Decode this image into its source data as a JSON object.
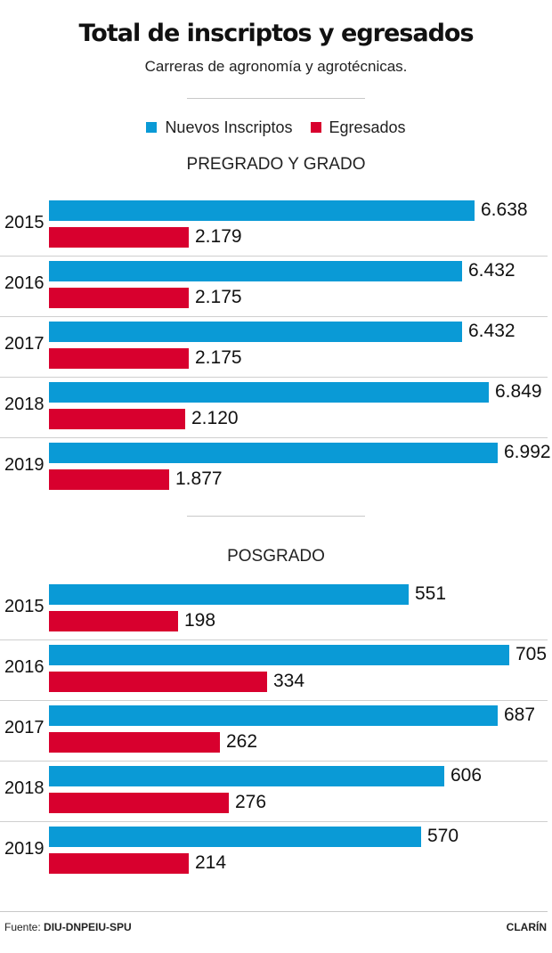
{
  "title": "Total de inscriptos y egresados",
  "subtitle": "Carreras de agronomía y agrotécnicas.",
  "legend": [
    {
      "label": "Nuevos Inscriptos",
      "color": "#0a9ad6"
    },
    {
      "label": "Egresados",
      "color": "#d8002e"
    }
  ],
  "chart_data": [
    {
      "type": "bar",
      "orientation": "horizontal",
      "title": "PREGRADO Y GRADO",
      "categories": [
        "2015",
        "2016",
        "2017",
        "2018",
        "2019"
      ],
      "series": [
        {
          "name": "Nuevos Inscriptos",
          "values": [
            6638,
            6432,
            6432,
            6849,
            6992
          ],
          "labels": [
            "6.638",
            "6.432",
            "6.432",
            "6.849",
            "6.992"
          ]
        },
        {
          "name": "Egresados",
          "values": [
            2179,
            2175,
            2175,
            2120,
            1877
          ],
          "labels": [
            "2.179",
            "2.175",
            "2.175",
            "2.120",
            "1.877"
          ]
        }
      ]
    },
    {
      "type": "bar",
      "orientation": "horizontal",
      "title": "POSGRADO",
      "categories": [
        "2015",
        "2016",
        "2017",
        "2018",
        "2019"
      ],
      "series": [
        {
          "name": "Nuevos Inscriptos",
          "values": [
            551,
            705,
            687,
            606,
            570
          ],
          "labels": [
            "551",
            "705",
            "687",
            "606",
            "570"
          ]
        },
        {
          "name": "Egresados",
          "values": [
            198,
            334,
            262,
            276,
            214
          ],
          "labels": [
            "198",
            "334",
            "262",
            "276",
            "214"
          ]
        }
      ]
    }
  ],
  "footer": {
    "source_prefix": "Fuente: ",
    "source": "DIU-DNPEIU-SPU",
    "brand": "CLARÍN"
  }
}
